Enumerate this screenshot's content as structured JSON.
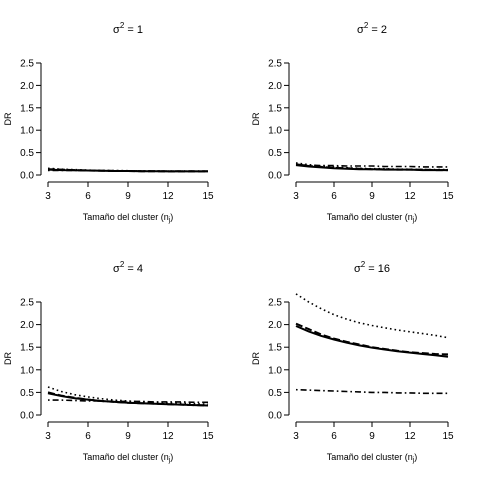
{
  "chart_data": [
    {
      "type": "line",
      "title": "σ² = 1",
      "title_base": "σ",
      "title_sup": "2",
      "title_rest": " = 1",
      "xlabel": "Tamaño del cluster (n",
      "xlabel_sub": "j",
      "xlabel_end": ")",
      "ylabel": "DR",
      "xlim": [
        3,
        15
      ],
      "ylim": [
        0,
        2.5
      ],
      "xticks": [
        3,
        6,
        9,
        12,
        15
      ],
      "yticks": [
        0.0,
        0.5,
        1.0,
        1.5,
        2.0,
        2.5
      ],
      "xtick_labels": [
        "3",
        "6",
        "9",
        "12",
        "15"
      ],
      "ytick_labels": [
        "0.0",
        "0.5",
        "1.0",
        "1.5",
        "2.0",
        "2.5"
      ],
      "x": [
        3,
        4,
        5,
        6,
        7,
        8,
        9,
        10,
        11,
        12,
        13,
        14,
        15
      ],
      "series": [
        {
          "style": "solid",
          "values": [
            0.12,
            0.11,
            0.105,
            0.1,
            0.095,
            0.09,
            0.09,
            0.085,
            0.085,
            0.08,
            0.08,
            0.08,
            0.08
          ]
        },
        {
          "style": "dashed",
          "values": [
            0.13,
            0.12,
            0.11,
            0.1,
            0.095,
            0.09,
            0.09,
            0.085,
            0.085,
            0.08,
            0.08,
            0.08,
            0.08
          ]
        },
        {
          "style": "dotted",
          "values": [
            0.15,
            0.13,
            0.12,
            0.11,
            0.1,
            0.1,
            0.095,
            0.09,
            0.09,
            0.085,
            0.085,
            0.085,
            0.08
          ]
        },
        {
          "style": "dotdash",
          "values": [
            0.1,
            0.1,
            0.1,
            0.1,
            0.095,
            0.095,
            0.09,
            0.09,
            0.09,
            0.09,
            0.09,
            0.09,
            0.09
          ]
        }
      ]
    },
    {
      "type": "line",
      "title": "σ² = 2",
      "title_base": "σ",
      "title_sup": "2",
      "title_rest": " = 2",
      "xlabel": "Tamaño del cluster (n",
      "xlabel_sub": "j",
      "xlabel_end": ")",
      "ylabel": "DR",
      "xlim": [
        3,
        15
      ],
      "ylim": [
        0,
        2.5
      ],
      "xticks": [
        3,
        6,
        9,
        12,
        15
      ],
      "yticks": [
        0.0,
        0.5,
        1.0,
        1.5,
        2.0,
        2.5
      ],
      "xtick_labels": [
        "3",
        "6",
        "9",
        "12",
        "15"
      ],
      "ytick_labels": [
        "0.0",
        "0.5",
        "1.0",
        "1.5",
        "2.0",
        "2.5"
      ],
      "x": [
        3,
        4,
        5,
        6,
        7,
        8,
        9,
        10,
        11,
        12,
        13,
        14,
        15
      ],
      "series": [
        {
          "style": "solid",
          "values": [
            0.22,
            0.19,
            0.17,
            0.15,
            0.14,
            0.13,
            0.13,
            0.12,
            0.12,
            0.12,
            0.11,
            0.11,
            0.11
          ]
        },
        {
          "style": "dashed",
          "values": [
            0.24,
            0.2,
            0.18,
            0.16,
            0.15,
            0.14,
            0.13,
            0.13,
            0.12,
            0.12,
            0.12,
            0.11,
            0.11
          ]
        },
        {
          "style": "dotted",
          "values": [
            0.27,
            0.23,
            0.2,
            0.18,
            0.16,
            0.15,
            0.14,
            0.14,
            0.13,
            0.13,
            0.12,
            0.12,
            0.12
          ]
        },
        {
          "style": "dotdash",
          "values": [
            0.22,
            0.22,
            0.21,
            0.21,
            0.2,
            0.2,
            0.2,
            0.19,
            0.19,
            0.19,
            0.18,
            0.18,
            0.18
          ]
        }
      ]
    },
    {
      "type": "line",
      "title": "σ² = 4",
      "title_base": "σ",
      "title_sup": "2",
      "title_rest": " = 4",
      "xlabel": "Tamaño del cluster (n",
      "xlabel_sub": "j",
      "xlabel_end": ")",
      "ylabel": "DR",
      "xlim": [
        3,
        15
      ],
      "ylim": [
        0,
        2.5
      ],
      "xticks": [
        3,
        6,
        9,
        12,
        15
      ],
      "yticks": [
        0.0,
        0.5,
        1.0,
        1.5,
        2.0,
        2.5
      ],
      "xtick_labels": [
        "3",
        "6",
        "9",
        "12",
        "15"
      ],
      "ytick_labels": [
        "0.0",
        "0.5",
        "1.0",
        "1.5",
        "2.0",
        "2.5"
      ],
      "x": [
        3,
        4,
        5,
        6,
        7,
        8,
        9,
        10,
        11,
        12,
        13,
        14,
        15
      ],
      "series": [
        {
          "style": "solid",
          "values": [
            0.48,
            0.42,
            0.37,
            0.34,
            0.31,
            0.29,
            0.27,
            0.26,
            0.25,
            0.24,
            0.23,
            0.22,
            0.21
          ]
        },
        {
          "style": "dashed",
          "values": [
            0.5,
            0.43,
            0.38,
            0.34,
            0.31,
            0.29,
            0.27,
            0.26,
            0.25,
            0.24,
            0.23,
            0.22,
            0.21
          ]
        },
        {
          "style": "dotted",
          "values": [
            0.62,
            0.52,
            0.45,
            0.4,
            0.36,
            0.33,
            0.31,
            0.29,
            0.28,
            0.27,
            0.26,
            0.25,
            0.24
          ]
        },
        {
          "style": "dotdash",
          "values": [
            0.33,
            0.33,
            0.32,
            0.31,
            0.31,
            0.3,
            0.3,
            0.3,
            0.29,
            0.29,
            0.29,
            0.28,
            0.28
          ]
        }
      ]
    },
    {
      "type": "line",
      "title": "σ² = 16",
      "title_base": "σ",
      "title_sup": "2",
      "title_rest": " = 16",
      "xlabel": "Tamaño del cluster (n",
      "xlabel_sub": "j",
      "xlabel_end": ")",
      "ylabel": "DR",
      "xlim": [
        3,
        15
      ],
      "ylim": [
        0,
        2.5
      ],
      "xticks": [
        3,
        6,
        9,
        12,
        15
      ],
      "yticks": [
        0.0,
        0.5,
        1.0,
        1.5,
        2.0,
        2.5
      ],
      "xtick_labels": [
        "3",
        "6",
        "9",
        "12",
        "15"
      ],
      "ytick_labels": [
        "0.0",
        "0.5",
        "1.0",
        "1.5",
        "2.0",
        "2.5"
      ],
      "x": [
        3,
        4,
        5,
        6,
        7,
        8,
        9,
        10,
        11,
        12,
        13,
        14,
        15
      ],
      "series": [
        {
          "style": "solid",
          "values": [
            1.97,
            1.85,
            1.75,
            1.67,
            1.6,
            1.54,
            1.49,
            1.45,
            1.41,
            1.38,
            1.35,
            1.32,
            1.29
          ]
        },
        {
          "style": "dashed",
          "values": [
            2.02,
            1.9,
            1.78,
            1.69,
            1.62,
            1.56,
            1.5,
            1.46,
            1.42,
            1.39,
            1.37,
            1.35,
            1.34
          ]
        },
        {
          "style": "dotted",
          "values": [
            2.68,
            2.5,
            2.35,
            2.22,
            2.12,
            2.04,
            1.98,
            1.93,
            1.88,
            1.84,
            1.8,
            1.76,
            1.71
          ]
        },
        {
          "style": "dotdash",
          "values": [
            0.56,
            0.55,
            0.54,
            0.53,
            0.52,
            0.51,
            0.5,
            0.5,
            0.49,
            0.49,
            0.48,
            0.48,
            0.48
          ]
        }
      ]
    }
  ]
}
